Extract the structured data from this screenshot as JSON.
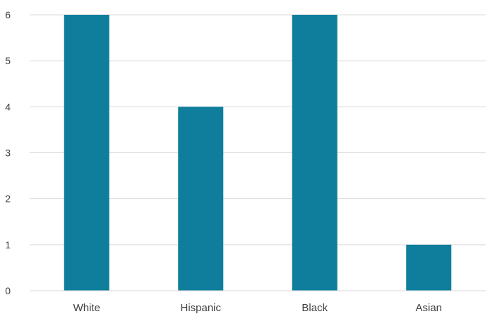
{
  "chart_data": {
    "type": "bar",
    "categories": [
      "White",
      "Hispanic",
      "Black",
      "Asian"
    ],
    "values": [
      6,
      4,
      6,
      1
    ],
    "title": "",
    "xlabel": "",
    "ylabel": "",
    "ylim": [
      0,
      6
    ],
    "yticks": [
      "0",
      "1",
      "2",
      "3",
      "4",
      "5",
      "6"
    ],
    "grid": true,
    "legend": "none",
    "bar_color": "#0e7e9c"
  }
}
